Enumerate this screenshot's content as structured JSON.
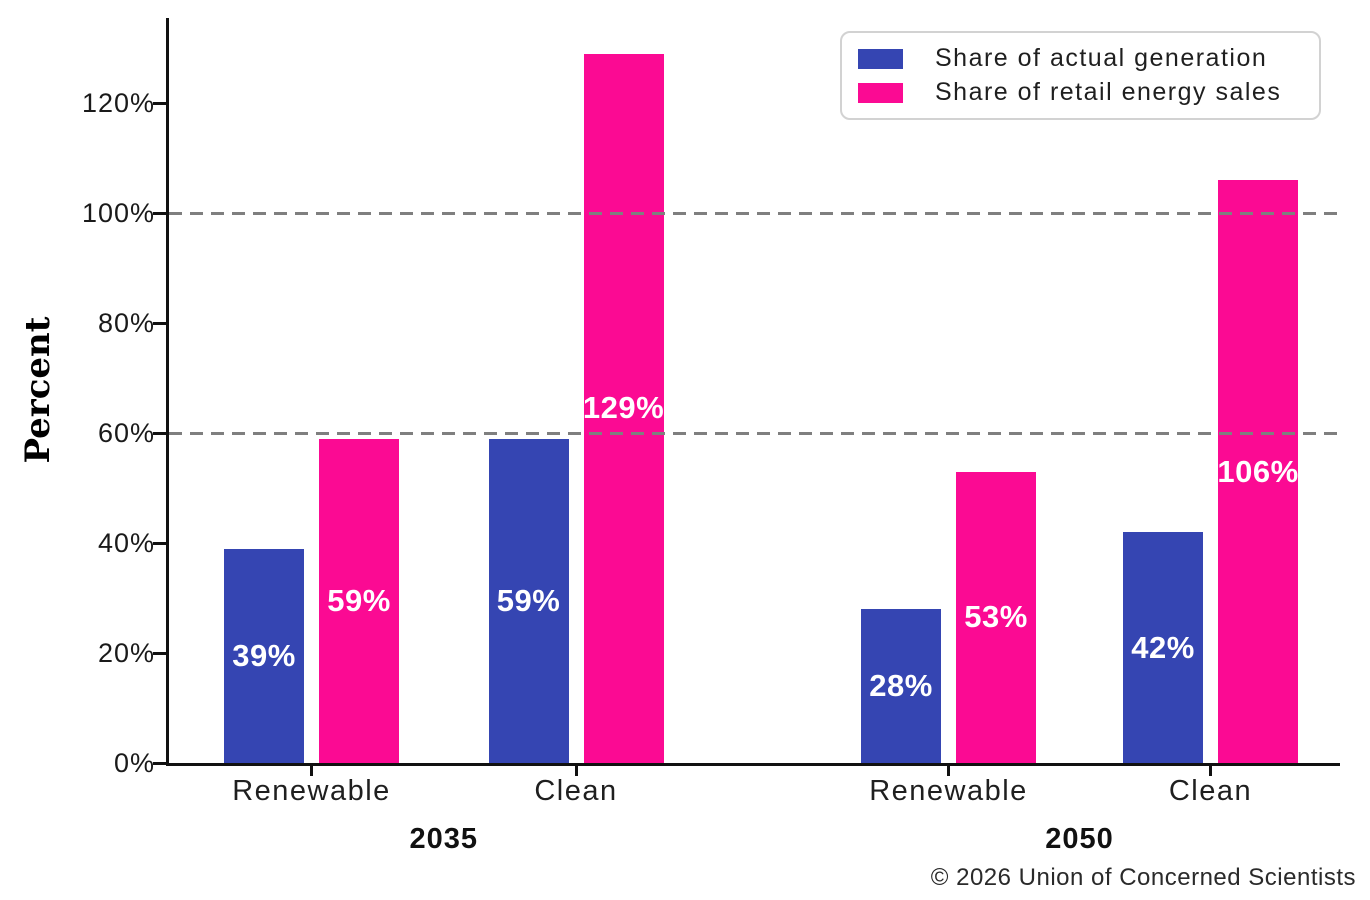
{
  "chart_data": {
    "type": "bar",
    "title": "",
    "xlabel": "",
    "ylabel": "Percent",
    "ylim": [
      0,
      135.5
    ],
    "yticks": [
      {
        "value": 0,
        "label": "0%"
      },
      {
        "value": 20,
        "label": "20%"
      },
      {
        "value": 40,
        "label": "40%"
      },
      {
        "value": 60,
        "label": "60%"
      },
      {
        "value": 80,
        "label": "80%"
      },
      {
        "value": 100,
        "label": "100%"
      },
      {
        "value": 120,
        "label": "120%"
      }
    ],
    "gridlines_y": [
      60,
      100
    ],
    "grid_style": "dashed",
    "legend_position": "upper-right",
    "categories": [
      "Renewable",
      "Clean",
      "Renewable",
      "Clean"
    ],
    "groups": [
      {
        "year": "2035",
        "categories": [
          "Renewable",
          "Clean"
        ]
      },
      {
        "year": "2050",
        "categories": [
          "Renewable",
          "Clean"
        ]
      }
    ],
    "series": [
      {
        "name": "Share of actual generation",
        "color": "#3545B2",
        "values": [
          39,
          59,
          28,
          42
        ],
        "labels": [
          "39%",
          "59%",
          "28%",
          "42%"
        ]
      },
      {
        "name": "Share of retail energy sales",
        "color": "#FB0A93",
        "values": [
          59,
          129,
          53,
          106
        ],
        "labels": [
          "59%",
          "129%",
          "53%",
          "106%"
        ]
      }
    ]
  },
  "legend": {
    "items": [
      {
        "label": "Share of actual generation",
        "color": "#3545B2"
      },
      {
        "label": "Share of retail energy sales",
        "color": "#FB0A93"
      }
    ]
  },
  "footer": {
    "copyright": "© 2026 Union of Concerned Scientists"
  }
}
